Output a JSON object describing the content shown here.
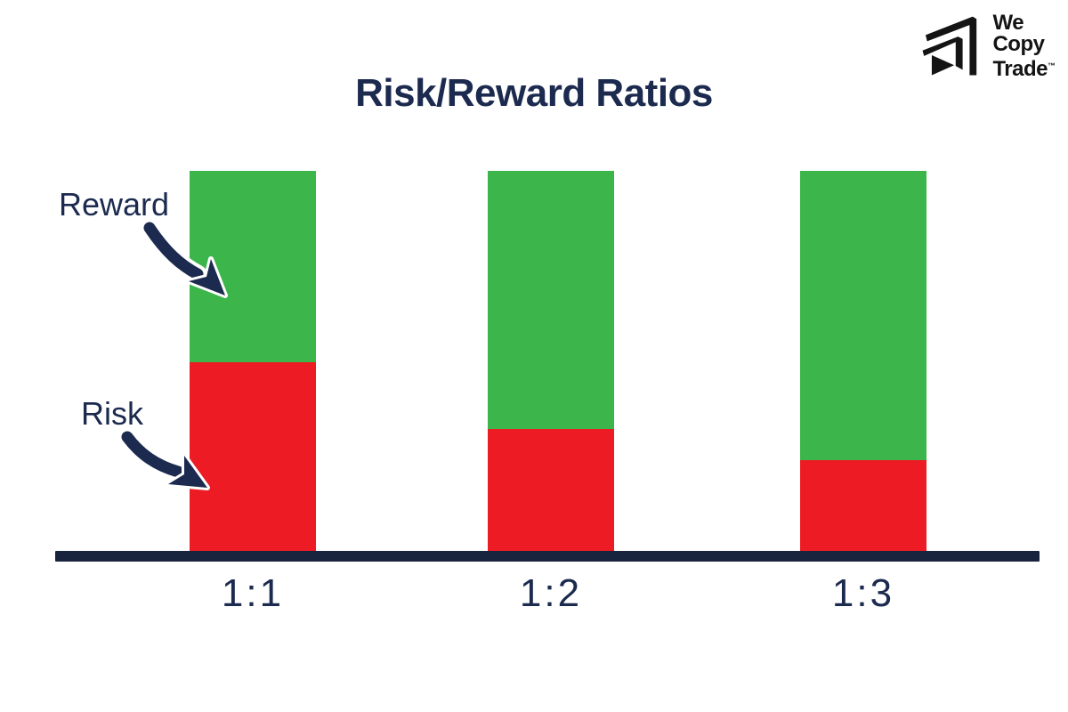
{
  "colors": {
    "navy": "#1b2a4e",
    "baseline": "#18243d",
    "green": "#3cb54a",
    "red": "#ed1c24",
    "logo_black": "#141414",
    "background": "#ffffff"
  },
  "logo": {
    "lines": [
      "We",
      "Copy",
      "Trade"
    ],
    "trademark": "™",
    "mark_icon": "wecopytrade-arrows-mark"
  },
  "chart_data": {
    "type": "bar",
    "subtype": "stacked-normalized",
    "title": "Risk/Reward Ratios",
    "categories": [
      "1:1",
      "1:2",
      "1:3"
    ],
    "series": [
      {
        "name": "Risk",
        "color": "#ed1c24",
        "values": [
          1,
          1,
          1
        ]
      },
      {
        "name": "Reward",
        "color": "#3cb54a",
        "values": [
          1,
          2,
          3
        ]
      }
    ],
    "risk_fraction": [
      0.5,
      0.333,
      0.25
    ],
    "risk_fraction_rendered": [
      0.498,
      0.322,
      0.241
    ],
    "layout": {
      "orientation": "vertical",
      "bars_equal_total_height": true,
      "grid": "off",
      "y_axis_labels": "none",
      "x_axis": "thick navy baseline",
      "legend": "arrow annotations pointing at first bar segments"
    }
  }
}
